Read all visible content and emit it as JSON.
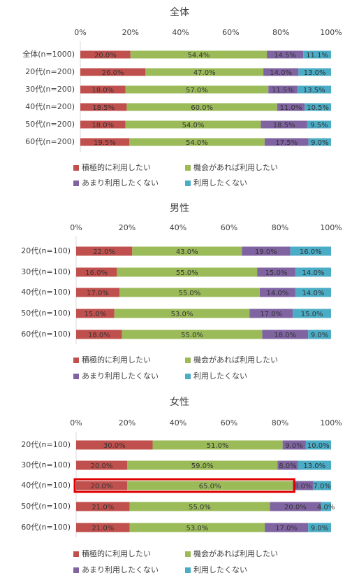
{
  "chart_data": [
    {
      "type": "stacked-bar-horizontal",
      "title": "全体",
      "categories": [
        "全体(n=1000)",
        "20代(n=200)",
        "30代(n=200)",
        "40代(n=200)",
        "50代(n=200)",
        "60代(n=200)"
      ],
      "xlim": [
        0,
        100
      ],
      "xticks": [
        {
          "value": 0,
          "label": "0%"
        },
        {
          "value": 20,
          "label": "20%"
        },
        {
          "value": 40,
          "label": "40%"
        },
        {
          "value": 60,
          "label": "60%"
        },
        {
          "value": 80,
          "label": "80%"
        },
        {
          "value": 100,
          "label": "100%"
        }
      ],
      "series": [
        {
          "name": "積極的に利用したい",
          "color": "#c0504d",
          "values": [
            20,
            26,
            18,
            18.5,
            18,
            19.5
          ],
          "value_labels": [
            "20.0%",
            "26.0%",
            "18.0%",
            "18.5%",
            "18.0%",
            "19.5%"
          ]
        },
        {
          "name": "機会があれば利用したい",
          "color": "#9bbb59",
          "values": [
            54.4,
            47,
            57,
            60,
            54,
            54
          ],
          "value_labels": [
            "54.4%",
            "47.0%",
            "57.0%",
            "60.0%",
            "54.0%",
            "54.0%"
          ]
        },
        {
          "name": "あまり利用したくない",
          "color": "#8064a2",
          "values": [
            14.5,
            14,
            11.5,
            11,
            18.5,
            17.5
          ],
          "value_labels": [
            "14.5%",
            "14.0%",
            "11.5%",
            "11.0%",
            "18.5%",
            "17.5%"
          ]
        },
        {
          "name": "利用したくない",
          "color": "#4bacc6",
          "values": [
            11.1,
            13,
            13.5,
            10.5,
            9.5,
            9
          ],
          "value_labels": [
            "11.1%",
            "13.0%",
            "13.5%",
            "10.5%",
            "9.5%",
            "9.0%"
          ]
        }
      ]
    },
    {
      "type": "stacked-bar-horizontal",
      "title": "男性",
      "categories": [
        "20代(n=100)",
        "30代(n=100)",
        "40代(n=100)",
        "50代(n=100)",
        "60代(n=100)"
      ],
      "xlim": [
        0,
        100
      ],
      "xticks": [
        {
          "value": 0,
          "label": "0%"
        },
        {
          "value": 20,
          "label": "20%"
        },
        {
          "value": 40,
          "label": "40%"
        },
        {
          "value": 60,
          "label": "60%"
        },
        {
          "value": 80,
          "label": "80%"
        },
        {
          "value": 100,
          "label": "100%"
        }
      ],
      "series": [
        {
          "name": "積極的に利用したい",
          "color": "#c0504d",
          "values": [
            22,
            16,
            17,
            15,
            18
          ],
          "value_labels": [
            "22.0%",
            "16.0%",
            "17.0%",
            "15.0%",
            "18.0%"
          ]
        },
        {
          "name": "機会があれば利用したい",
          "color": "#9bbb59",
          "values": [
            43,
            55,
            55,
            53,
            55
          ],
          "value_labels": [
            "43.0%",
            "55.0%",
            "55.0%",
            "53.0%",
            "55.0%"
          ]
        },
        {
          "name": "あまり利用したくない",
          "color": "#8064a2",
          "values": [
            19,
            15,
            14,
            17,
            18
          ],
          "value_labels": [
            "19.0%",
            "15.0%",
            "14.0%",
            "17.0%",
            "18.0%"
          ]
        },
        {
          "name": "利用したくない",
          "color": "#4bacc6",
          "values": [
            16,
            14,
            14,
            15,
            9
          ],
          "value_labels": [
            "16.0%",
            "14.0%",
            "14.0%",
            "15.0%",
            "9.0%"
          ]
        }
      ]
    },
    {
      "type": "stacked-bar-horizontal",
      "title": "女性",
      "categories": [
        "20代(n=100)",
        "30代(n=100)",
        "40代(n=100)",
        "50代(n=100)",
        "60代(n=100)"
      ],
      "xlim": [
        0,
        100
      ],
      "xticks": [
        {
          "value": 0,
          "label": "0%"
        },
        {
          "value": 20,
          "label": "20%"
        },
        {
          "value": 40,
          "label": "40%"
        },
        {
          "value": 60,
          "label": "60%"
        },
        {
          "value": 80,
          "label": "80%"
        },
        {
          "value": 100,
          "label": "100%"
        }
      ],
      "series": [
        {
          "name": "積極的に利用したい",
          "color": "#c0504d",
          "values": [
            30,
            20,
            20,
            21,
            21
          ],
          "value_labels": [
            "30.0%",
            "20.0%",
            "20.0%",
            "21.0%",
            "21.0%"
          ]
        },
        {
          "name": "機会があれば利用したい",
          "color": "#9bbb59",
          "values": [
            51,
            59,
            65,
            55,
            53
          ],
          "value_labels": [
            "51.0%",
            "59.0%",
            "65.0%",
            "55.0%",
            "53.0%"
          ]
        },
        {
          "name": "あまり利用したくない",
          "color": "#8064a2",
          "values": [
            9,
            8,
            8,
            20,
            17
          ],
          "value_labels": [
            "9.0%",
            "8.0%",
            "8.0%",
            "20.0%",
            "17.0%"
          ]
        },
        {
          "name": "利用したくない",
          "color": "#4bacc6",
          "values": [
            10,
            13,
            7,
            4,
            9
          ],
          "value_labels": [
            "10.0%",
            "13.0%",
            "7.0%",
            "4.0%",
            "9.0%"
          ]
        }
      ]
    }
  ]
}
